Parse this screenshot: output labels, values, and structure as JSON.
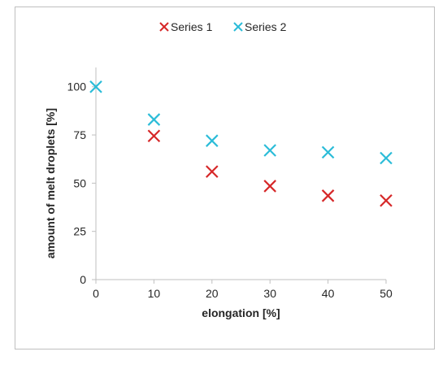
{
  "chart_data": {
    "type": "scatter",
    "title": "",
    "xlabel": "elongation [%]",
    "ylabel": "amount of melt droplets [%]",
    "xlim": [
      0,
      50
    ],
    "ylim": [
      0,
      110
    ],
    "x_ticks": [
      0,
      10,
      20,
      30,
      40,
      50
    ],
    "y_ticks": [
      0,
      25,
      50,
      75,
      100
    ],
    "grid": false,
    "legend_position": "top",
    "marker": "x",
    "series": [
      {
        "name": "Series 1",
        "color": "#d62728",
        "x": [
          10,
          20,
          30,
          40,
          50
        ],
        "y": [
          74.5,
          56,
          48.5,
          43.5,
          41
        ]
      },
      {
        "name": "Series 2",
        "color": "#2bbcd8",
        "x": [
          0,
          10,
          20,
          30,
          40,
          50
        ],
        "y": [
          100,
          83,
          72,
          67,
          66,
          63
        ]
      }
    ]
  }
}
